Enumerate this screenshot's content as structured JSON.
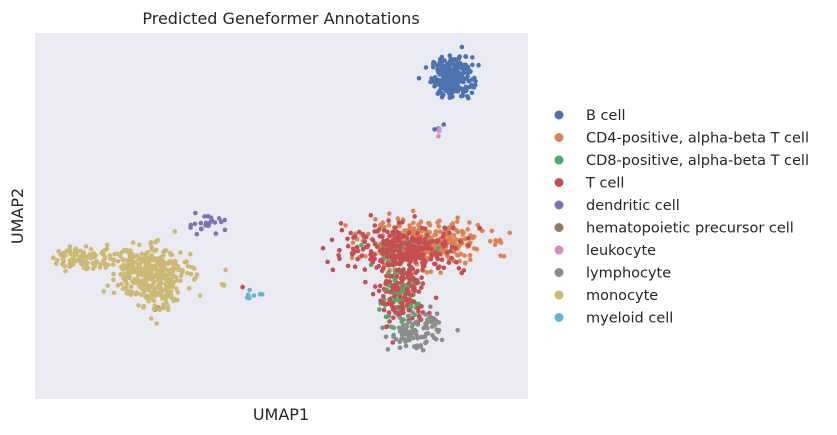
{
  "chart_data": {
    "type": "scatter",
    "title": "Predicted Geneformer Annotations",
    "xlabel": "UMAP1",
    "ylabel": "UMAP2",
    "xlim": [
      -8,
      14
    ],
    "ylim": [
      -7,
      13
    ],
    "grid": false,
    "legend_position": "right",
    "background": "#EAEAF2",
    "series": [
      {
        "name": "B cell",
        "color": "#4C72B0",
        "clusters": [
          {
            "cx": 10.6,
            "cy": 10.6,
            "sx": 0.45,
            "sy": 0.55,
            "n": 260
          },
          {
            "cx": 10.0,
            "cy": 7.8,
            "sx": 0.12,
            "sy": 0.2,
            "n": 4
          }
        ]
      },
      {
        "name": "CD4-positive, alpha-beta T cell",
        "color": "#DD8452",
        "clusters": [
          {
            "cx": 9.4,
            "cy": 1.5,
            "sx": 1.3,
            "sy": 0.6,
            "n": 340
          }
        ]
      },
      {
        "name": "CD8-positive, alpha-beta T cell",
        "color": "#55A868",
        "clusters": [
          {
            "cx": 8.2,
            "cy": -1.6,
            "sx": 0.45,
            "sy": 0.8,
            "n": 110
          },
          {
            "cx": 8.3,
            "cy": 1.3,
            "sx": 0.8,
            "sy": 0.4,
            "n": 25
          }
        ]
      },
      {
        "name": "T cell",
        "color": "#C44E52",
        "clusters": [
          {
            "cx": 8.5,
            "cy": 1.2,
            "sx": 1.35,
            "sy": 0.65,
            "n": 280
          },
          {
            "cx": 8.4,
            "cy": -1.4,
            "sx": 0.55,
            "sy": 0.9,
            "n": 120
          },
          {
            "cx": 1.2,
            "cy": -0.9,
            "sx": 0.05,
            "sy": 0.05,
            "n": 1
          }
        ]
      },
      {
        "name": "dendritic cell",
        "color": "#8172B3",
        "clusters": [
          {
            "cx": -0.3,
            "cy": 2.6,
            "sx": 0.5,
            "sy": 0.3,
            "n": 24
          }
        ]
      },
      {
        "name": "hematopoietic precursor cell",
        "color": "#937860",
        "clusters": [
          {
            "cx": 8.1,
            "cy": -1.0,
            "sx": 0.3,
            "sy": 0.3,
            "n": 3
          },
          {
            "cx": -2.6,
            "cy": -1.9,
            "sx": 0.2,
            "sy": 0.2,
            "n": 2
          }
        ]
      },
      {
        "name": "leukocyte",
        "color": "#DA8BC3",
        "clusters": [
          {
            "cx": 10.0,
            "cy": 7.6,
            "sx": 0.1,
            "sy": 0.1,
            "n": 3
          }
        ]
      },
      {
        "name": "lymphocyte",
        "color": "#8C8C8C",
        "clusters": [
          {
            "cx": 8.9,
            "cy": -3.4,
            "sx": 0.55,
            "sy": 0.45,
            "n": 90
          },
          {
            "cx": 9.7,
            "cy": -2.8,
            "sx": 0.2,
            "sy": 0.3,
            "n": 12
          }
        ]
      },
      {
        "name": "monocyte",
        "color": "#CCB974",
        "clusters": [
          {
            "cx": -2.9,
            "cy": 0.0,
            "sx": 0.95,
            "sy": 0.65,
            "n": 320
          },
          {
            "cx": -5.8,
            "cy": 0.7,
            "sx": 0.7,
            "sy": 0.3,
            "n": 90
          },
          {
            "cx": -2.4,
            "cy": -1.4,
            "sx": 0.5,
            "sy": 0.5,
            "n": 70
          },
          {
            "cx": 0.4,
            "cy": -0.8,
            "sx": 0.1,
            "sy": 0.06,
            "n": 3
          }
        ]
      },
      {
        "name": "myeloid cell",
        "color": "#64B5CD",
        "clusters": [
          {
            "cx": 1.7,
            "cy": -1.3,
            "sx": 0.25,
            "sy": 0.1,
            "n": 8
          }
        ]
      }
    ]
  }
}
